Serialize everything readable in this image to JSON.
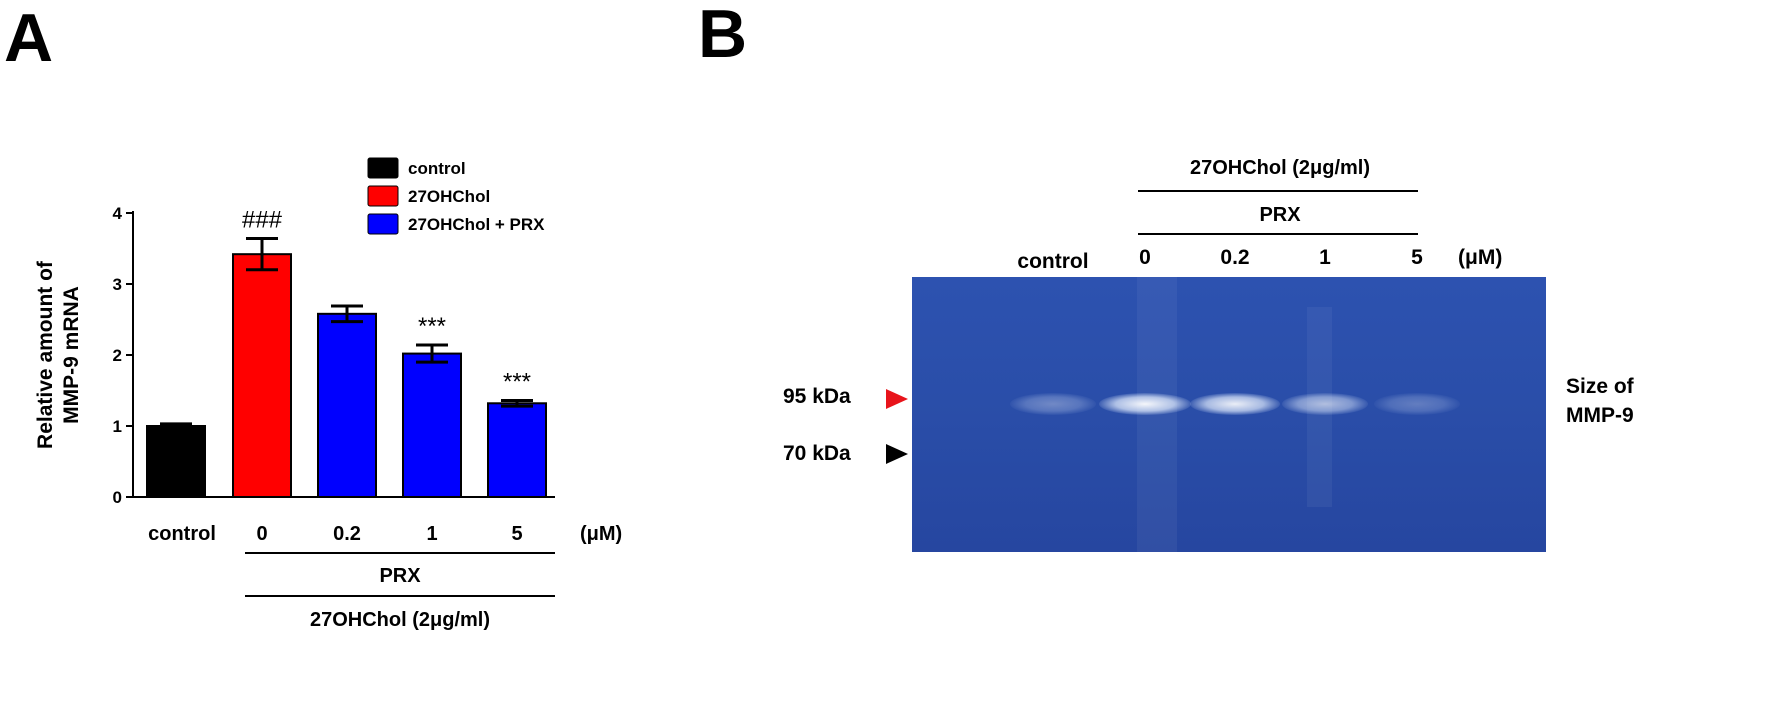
{
  "panel_a": {
    "letter": "A",
    "chart_data": {
      "type": "bar",
      "categories": [
        "control",
        "0",
        "0.2",
        "1",
        "5"
      ],
      "values": [
        1.0,
        3.42,
        2.58,
        2.02,
        1.32
      ],
      "errors": [
        0.03,
        0.22,
        0.11,
        0.12,
        0.04
      ],
      "colors": [
        "#000000",
        "#ff0000",
        "#0000ff",
        "#0000ff",
        "#0000ff"
      ],
      "annotations": [
        "",
        "###",
        "",
        "***",
        "***"
      ],
      "ylabel_line1": "Relative amount of",
      "ylabel_line2": "MMP-9 mRNA",
      "ylim": [
        0,
        4
      ],
      "yticks": [
        "0",
        "1",
        "2",
        "3",
        "4"
      ],
      "unit_label": "(μM)",
      "group_label_1": "PRX",
      "group_label_2": "27OHChol (2μg/ml)",
      "legend": [
        {
          "label": "control",
          "color": "#000000"
        },
        {
          "label": "27OHChol",
          "color": "#ff0000"
        },
        {
          "label": "27OHChol + PRX",
          "color": "#0000ff"
        }
      ]
    }
  },
  "panel_b": {
    "letter": "B",
    "header_1": "27OHChol (2μg/ml)",
    "header_2": "PRX",
    "lanes": [
      "control",
      "0",
      "0.2",
      "1",
      "5"
    ],
    "unit_label": "(μM)",
    "marker_95": "95 kDa",
    "marker_70": "70 kDa",
    "size_label_1": "Size of",
    "size_label_2": "MMP-9",
    "band_intensity": [
      0.35,
      1.0,
      0.95,
      0.65,
      0.28
    ],
    "colors": {
      "gel": "#2a4ea9",
      "marker_95": "#e8141b",
      "marker_70": "#000000"
    }
  }
}
